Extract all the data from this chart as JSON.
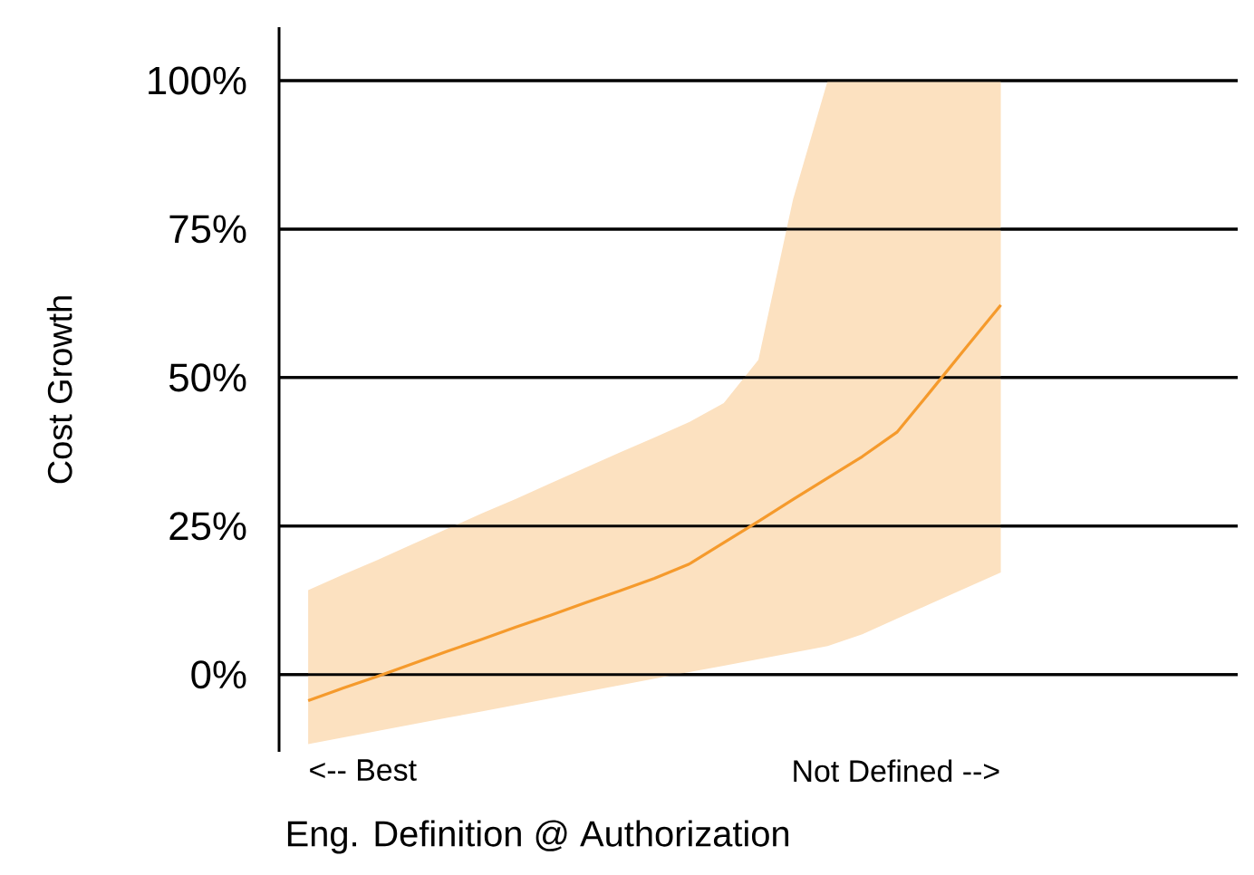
{
  "chart_data": {
    "type": "line",
    "xlabel": "Eng. Definition @ Authorization",
    "ylabel": "Cost Growth",
    "categories": [
      null,
      null,
      null,
      null,
      null,
      null,
      null,
      null,
      null,
      null,
      null,
      null,
      null,
      null,
      null,
      null,
      null,
      null,
      null,
      null,
      null
    ],
    "series": [
      {
        "color": "#f59a2c",
        "values": [
          -4.4,
          -2.3,
          -0.3,
          1.8,
          3.9,
          5.9,
          8.0,
          10.0,
          12.1,
          14.1,
          16.2,
          18.6,
          22.2,
          25.8,
          29.5,
          33.1,
          36.7,
          40.8,
          47.9,
          55.1,
          62.2
        ],
        "lower": [
          -11.7,
          -10.6,
          -9.5,
          -8.4,
          -7.3,
          -6.2,
          -5.1,
          -4.0,
          -2.9,
          -1.8,
          -0.7,
          0.4,
          1.5,
          2.6,
          3.7,
          4.8,
          6.8,
          9.4,
          12.0,
          14.6,
          17.2
        ],
        "upper": [
          14.2,
          16.8,
          19.3,
          21.9,
          24.5,
          27.1,
          29.6,
          32.2,
          34.8,
          37.4,
          39.9,
          42.5,
          45.7,
          53.0,
          80.0,
          100,
          100,
          100,
          100,
          100,
          100
        ]
      }
    ],
    "ylim": [
      -13,
      109
    ],
    "yticks": [
      {
        "value": 0,
        "label": "0%"
      },
      {
        "value": 25,
        "label": "25%"
      },
      {
        "value": 50,
        "label": "50%"
      },
      {
        "value": 75,
        "label": "75%"
      },
      {
        "value": 100,
        "label": "100%"
      }
    ],
    "grid": "y",
    "tick_labels": "y",
    "annotations": [
      "<-- Best",
      "Not Defined -->"
    ]
  }
}
